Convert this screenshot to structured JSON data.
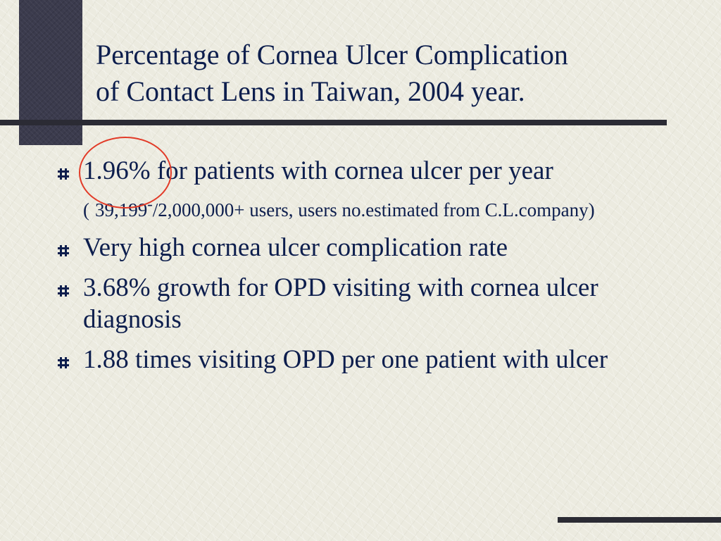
{
  "title": {
    "line1": "Percentage of Cornea Ulcer Complication",
    "line2": "of Contact Lens in Taiwan, 2004 year."
  },
  "bullets": [
    {
      "highlight": "1.96%",
      "text": " for patients with cornea ulcer per year",
      "note": {
        "open": "(",
        "text": "39,199",
        "superscript": "-",
        "rest": "/2,000,000+ users, users no.estimated from C.L.company)"
      }
    },
    {
      "text": "Very high cornea ulcer complication rate"
    },
    {
      "text": "3.68% growth for OPD visiting with cornea ulcer diagnosis"
    },
    {
      "text": "1.88 times visiting OPD per one patient with ulcer"
    }
  ],
  "colors": {
    "text": "#0d1e4d",
    "accent_dark": "#3b3b4d",
    "highlight_circle": "#e23b28"
  },
  "icons": {
    "bullet": "hash-bullet-icon"
  }
}
